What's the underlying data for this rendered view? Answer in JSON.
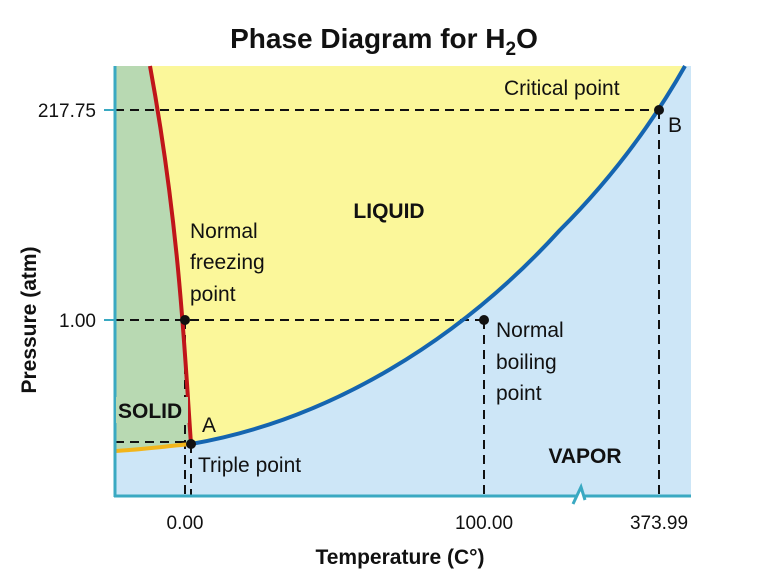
{
  "diagram": {
    "title_main": "Phase Diagram for H",
    "title_sub": "2",
    "title_end": "O",
    "y_axis_label": "Pressure (atm)",
    "x_axis_label": "Temperature (C°)",
    "y_ticks": [
      "217.75",
      "1.00"
    ],
    "x_ticks": [
      "0.00",
      "100.00",
      "373.99"
    ],
    "regions": {
      "liquid": "LIQUID",
      "solid": "SOLID",
      "vapor": "VAPOR"
    },
    "points": {
      "critical_label": "Critical point",
      "critical_letter": "B",
      "triple_label": "Triple point",
      "triple_letter": "A",
      "freezing_line1": "Normal",
      "freezing_line2": "freezing",
      "freezing_line3": "point",
      "boiling_line1": "Normal",
      "boiling_line2": "boiling",
      "boiling_line3": "point"
    },
    "colors": {
      "liquid": "#fbf79a",
      "vapor": "#cde6f7",
      "solid": "#b8d9b2",
      "axis": "#3aa9c2",
      "vaporization_curve": "#1565b0",
      "fusion_curve": "#c0151a",
      "sublimation_curve": "#f2b51a"
    }
  }
}
